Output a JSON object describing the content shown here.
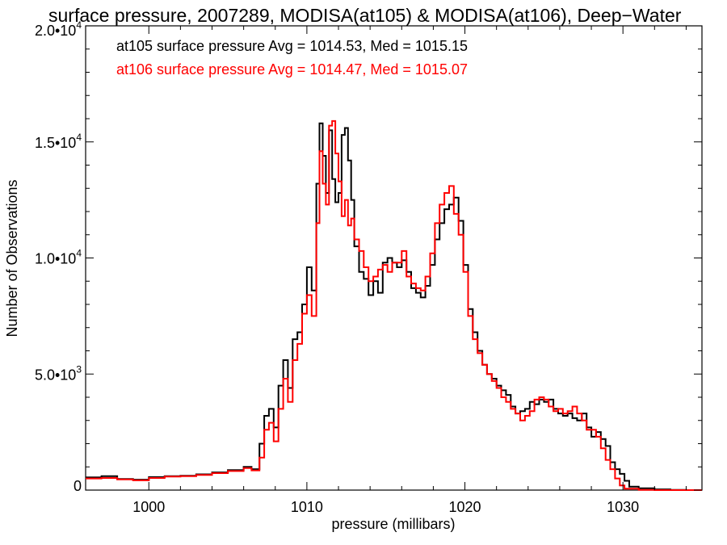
{
  "chart_data": {
    "type": "line",
    "step": true,
    "title": "surface pressure, 2007289, MODISA(at105) & MODISA(at106), Deep−Water",
    "xlabel": "pressure (millibars)",
    "ylabel": "Number of Observations",
    "xlim": [
      996,
      1035
    ],
    "ylim": [
      0,
      20000
    ],
    "x_ticks": [
      1000,
      1010,
      1020,
      1030
    ],
    "x_tick_labels": [
      "1000",
      "1010",
      "1020",
      "1030"
    ],
    "y_ticks": [
      0,
      5000,
      10000,
      15000,
      20000
    ],
    "y_tick_labels": [
      {
        "mantissa": "0",
        "exp": ""
      },
      {
        "mantissa": "5.0•10",
        "exp": "3"
      },
      {
        "mantissa": "1.0•10",
        "exp": "4"
      },
      {
        "mantissa": "1.5•10",
        "exp": "4"
      },
      {
        "mantissa": "2.0•10",
        "exp": "4"
      }
    ],
    "legend_placement": "top-left",
    "grid": false,
    "series": [
      {
        "name": "at105",
        "color": "#000000",
        "annotation": "at105 surface pressure Avg = 1014.53, Med = 1015.15",
        "points": [
          [
            996,
            550
          ],
          [
            997,
            600
          ],
          [
            998,
            480
          ],
          [
            999,
            450
          ],
          [
            1000,
            560
          ],
          [
            1001,
            600
          ],
          [
            1002,
            620
          ],
          [
            1003,
            680
          ],
          [
            1004,
            760
          ],
          [
            1005,
            860
          ],
          [
            1006,
            1000
          ],
          [
            1006.5,
            900
          ],
          [
            1007,
            2000
          ],
          [
            1007.3,
            3200
          ],
          [
            1007.6,
            3500
          ],
          [
            1007.9,
            2700
          ],
          [
            1008.2,
            4500
          ],
          [
            1008.5,
            5600
          ],
          [
            1008.8,
            4400
          ],
          [
            1009.1,
            6500
          ],
          [
            1009.4,
            6800
          ],
          [
            1009.7,
            8000
          ],
          [
            1010,
            9600
          ],
          [
            1010.3,
            8600
          ],
          [
            1010.6,
            13200
          ],
          [
            1010.8,
            15800
          ],
          [
            1011,
            14400
          ],
          [
            1011.2,
            12800
          ],
          [
            1011.4,
            15500
          ],
          [
            1011.6,
            13400
          ],
          [
            1011.8,
            12400
          ],
          [
            1012,
            12800
          ],
          [
            1012.2,
            15300
          ],
          [
            1012.4,
            15600
          ],
          [
            1012.6,
            14200
          ],
          [
            1012.8,
            12500
          ],
          [
            1013,
            10500
          ],
          [
            1013.3,
            9400
          ],
          [
            1013.6,
            9100
          ],
          [
            1013.9,
            8400
          ],
          [
            1014.2,
            9000
          ],
          [
            1014.5,
            8500
          ],
          [
            1014.8,
            9800
          ],
          [
            1015.1,
            10000
          ],
          [
            1015.4,
            9800
          ],
          [
            1015.7,
            9600
          ],
          [
            1016,
            9900
          ],
          [
            1016.3,
            9400
          ],
          [
            1016.6,
            8700
          ],
          [
            1016.9,
            8500
          ],
          [
            1017.2,
            8300
          ],
          [
            1017.5,
            8800
          ],
          [
            1017.8,
            9700
          ],
          [
            1018.1,
            10800
          ],
          [
            1018.4,
            11500
          ],
          [
            1018.7,
            12100
          ],
          [
            1019,
            12300
          ],
          [
            1019.3,
            12600
          ],
          [
            1019.6,
            11600
          ],
          [
            1019.9,
            9700
          ],
          [
            1020.2,
            7800
          ],
          [
            1020.5,
            6800
          ],
          [
            1020.8,
            6000
          ],
          [
            1021.1,
            5400
          ],
          [
            1021.4,
            5000
          ],
          [
            1021.7,
            4800
          ],
          [
            1022,
            4500
          ],
          [
            1022.3,
            4300
          ],
          [
            1022.6,
            4100
          ],
          [
            1022.9,
            3600
          ],
          [
            1023.2,
            3300
          ],
          [
            1023.5,
            3400
          ],
          [
            1023.8,
            3500
          ],
          [
            1024.1,
            3800
          ],
          [
            1024.4,
            3700
          ],
          [
            1024.7,
            3900
          ],
          [
            1025,
            3800
          ],
          [
            1025.3,
            3900
          ],
          [
            1025.6,
            3500
          ],
          [
            1025.9,
            3300
          ],
          [
            1026.2,
            3200
          ],
          [
            1026.5,
            3300
          ],
          [
            1026.8,
            3100
          ],
          [
            1027.1,
            3000
          ],
          [
            1027.4,
            3300
          ],
          [
            1027.7,
            2700
          ],
          [
            1028,
            2300
          ],
          [
            1028.3,
            2500
          ],
          [
            1028.6,
            2200
          ],
          [
            1028.9,
            1900
          ],
          [
            1029.2,
            1200
          ],
          [
            1029.5,
            900
          ],
          [
            1029.8,
            700
          ],
          [
            1030.1,
            400
          ],
          [
            1030.4,
            150
          ],
          [
            1031,
            80
          ],
          [
            1032,
            30
          ],
          [
            1033,
            10
          ],
          [
            1034,
            0
          ],
          [
            1035,
            0
          ]
        ]
      },
      {
        "name": "at106",
        "color": "#ff0000",
        "annotation": "at106 surface pressure Avg = 1014.47, Med = 1015.07",
        "points": [
          [
            996,
            500
          ],
          [
            997,
            520
          ],
          [
            998,
            460
          ],
          [
            999,
            420
          ],
          [
            1000,
            520
          ],
          [
            1001,
            580
          ],
          [
            1002,
            600
          ],
          [
            1003,
            650
          ],
          [
            1004,
            730
          ],
          [
            1005,
            820
          ],
          [
            1006,
            950
          ],
          [
            1006.5,
            850
          ],
          [
            1007,
            1400
          ],
          [
            1007.3,
            2600
          ],
          [
            1007.6,
            2900
          ],
          [
            1007.9,
            2100
          ],
          [
            1008.2,
            3500
          ],
          [
            1008.5,
            4800
          ],
          [
            1008.8,
            3800
          ],
          [
            1009.1,
            5600
          ],
          [
            1009.4,
            6300
          ],
          [
            1009.7,
            7600
          ],
          [
            1010,
            8400
          ],
          [
            1010.3,
            7500
          ],
          [
            1010.6,
            11500
          ],
          [
            1010.8,
            14600
          ],
          [
            1011,
            13200
          ],
          [
            1011.2,
            12300
          ],
          [
            1011.4,
            15700
          ],
          [
            1011.6,
            15900
          ],
          [
            1011.8,
            14500
          ],
          [
            1012,
            13300
          ],
          [
            1012.2,
            11800
          ],
          [
            1012.4,
            12500
          ],
          [
            1012.6,
            11400
          ],
          [
            1012.8,
            11700
          ],
          [
            1013,
            10800
          ],
          [
            1013.3,
            10300
          ],
          [
            1013.6,
            9600
          ],
          [
            1013.9,
            9000
          ],
          [
            1014.2,
            9200
          ],
          [
            1014.5,
            9500
          ],
          [
            1014.8,
            9700
          ],
          [
            1015.1,
            9400
          ],
          [
            1015.4,
            9800
          ],
          [
            1015.7,
            9800
          ],
          [
            1016,
            10300
          ],
          [
            1016.3,
            9200
          ],
          [
            1016.6,
            8900
          ],
          [
            1016.9,
            8700
          ],
          [
            1017.2,
            8600
          ],
          [
            1017.5,
            9200
          ],
          [
            1017.8,
            10200
          ],
          [
            1018.1,
            11500
          ],
          [
            1018.4,
            12300
          ],
          [
            1018.7,
            12800
          ],
          [
            1019,
            13100
          ],
          [
            1019.3,
            11900
          ],
          [
            1019.6,
            11000
          ],
          [
            1019.9,
            9400
          ],
          [
            1020.2,
            7500
          ],
          [
            1020.5,
            6500
          ],
          [
            1020.8,
            5900
          ],
          [
            1021.1,
            5400
          ],
          [
            1021.4,
            5000
          ],
          [
            1021.7,
            4700
          ],
          [
            1022,
            4400
          ],
          [
            1022.3,
            4000
          ],
          [
            1022.6,
            3800
          ],
          [
            1022.9,
            3500
          ],
          [
            1023.2,
            3300
          ],
          [
            1023.5,
            3000
          ],
          [
            1023.8,
            3200
          ],
          [
            1024.1,
            3400
          ],
          [
            1024.4,
            3900
          ],
          [
            1024.7,
            4000
          ],
          [
            1025,
            3900
          ],
          [
            1025.3,
            3600
          ],
          [
            1025.6,
            3400
          ],
          [
            1025.9,
            3500
          ],
          [
            1026.2,
            3300
          ],
          [
            1026.5,
            3400
          ],
          [
            1026.8,
            3600
          ],
          [
            1027.1,
            3300
          ],
          [
            1027.4,
            3000
          ],
          [
            1027.7,
            2600
          ],
          [
            1028,
            2600
          ],
          [
            1028.3,
            2300
          ],
          [
            1028.6,
            1800
          ],
          [
            1028.9,
            1300
          ],
          [
            1029.2,
            900
          ],
          [
            1029.5,
            500
          ],
          [
            1029.8,
            200
          ],
          [
            1030.1,
            60
          ],
          [
            1031,
            10
          ],
          [
            1032,
            0
          ],
          [
            1035,
            0
          ]
        ]
      }
    ]
  }
}
